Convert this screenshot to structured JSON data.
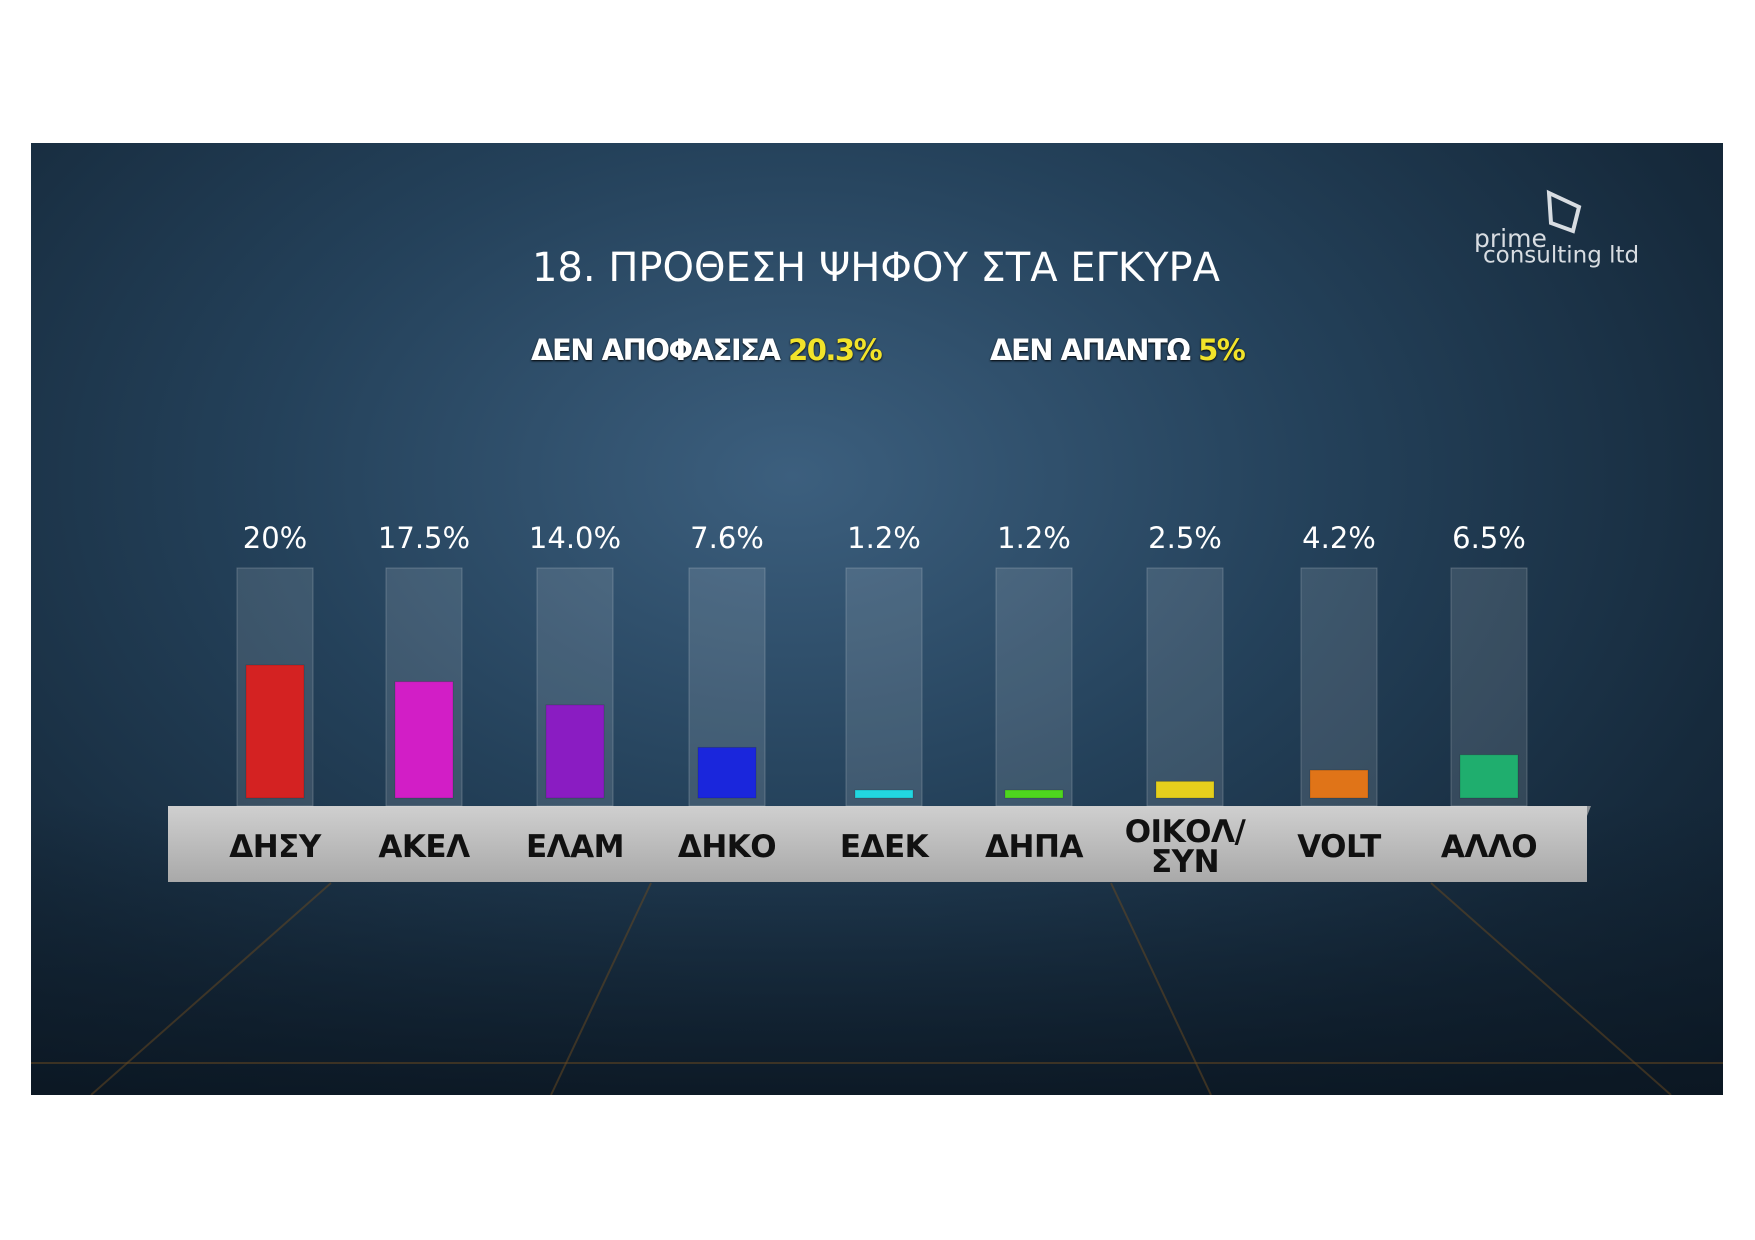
{
  "chart_data": {
    "type": "bar",
    "title": "18. ΠΡΟΘΕΣΗ ΨΗΦΟΥ ΣΤΑ ΕΓΚΥΡΑ",
    "notes": [
      {
        "text": "ΔΕΝ ΑΠΟΦΑΣΙΣΑ",
        "highlight": "20.3%"
      },
      {
        "text": "ΔΕΝ ΑΠΑΝΤΩ",
        "highlight": "5%"
      }
    ],
    "source_lines": [
      "prime",
      "consulting ltd"
    ],
    "categories": [
      "ΔΗΣΥ",
      "ΑΚΕΛ",
      "ΕΛΑΜ",
      "ΔΗΚΟ",
      "ΕΔΕΚ",
      "ΔΗΠΑ",
      "ΟΙΚΟΛ/ ΣΥΝ",
      "VOLT",
      "ΑΛΛΟ"
    ],
    "values": [
      20,
      17.5,
      14.0,
      7.6,
      1.2,
      1.2,
      2.5,
      4.2,
      6.5
    ],
    "value_labels": [
      "20%",
      "17.5%",
      "14.0%",
      "7.6%",
      "1.2%",
      "1.2%",
      "2.5%",
      "4.2%",
      "6.5%"
    ],
    "colors": [
      "#d42222",
      "#d21ec6",
      "#8a1cc2",
      "#1a26dc",
      "#22d6e0",
      "#4ed61e",
      "#e6cf1c",
      "#e07418",
      "#1fae6e"
    ]
  }
}
